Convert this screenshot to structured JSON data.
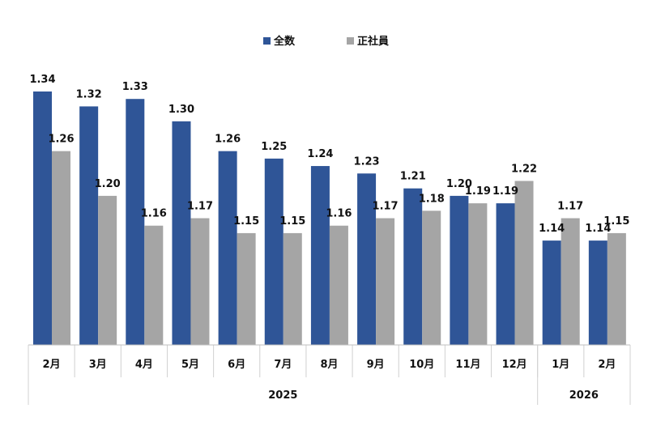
{
  "chart_data": {
    "type": "bar",
    "title": "",
    "xlabel": "",
    "ylabel": "",
    "ylim": [
      1.0,
      1.4
    ],
    "grid": false,
    "legend_position": "top-center",
    "categories": [
      "2月",
      "3月",
      "4月",
      "5月",
      "6月",
      "7月",
      "8月",
      "9月",
      "10月",
      "11月",
      "12月",
      "1月",
      "2月"
    ],
    "year_groups": [
      {
        "label": "2025",
        "span": 11
      },
      {
        "label": "2026",
        "span": 2
      }
    ],
    "series": [
      {
        "name": "全数",
        "color": "#2F5597",
        "values": [
          1.34,
          1.32,
          1.33,
          1.3,
          1.26,
          1.25,
          1.24,
          1.23,
          1.21,
          1.2,
          1.19,
          1.14,
          1.14
        ]
      },
      {
        "name": "正社員",
        "color": "#A5A5A5",
        "values": [
          1.26,
          1.2,
          1.16,
          1.17,
          1.15,
          1.15,
          1.16,
          1.17,
          1.18,
          1.19,
          1.22,
          1.17,
          1.15
        ]
      }
    ]
  }
}
